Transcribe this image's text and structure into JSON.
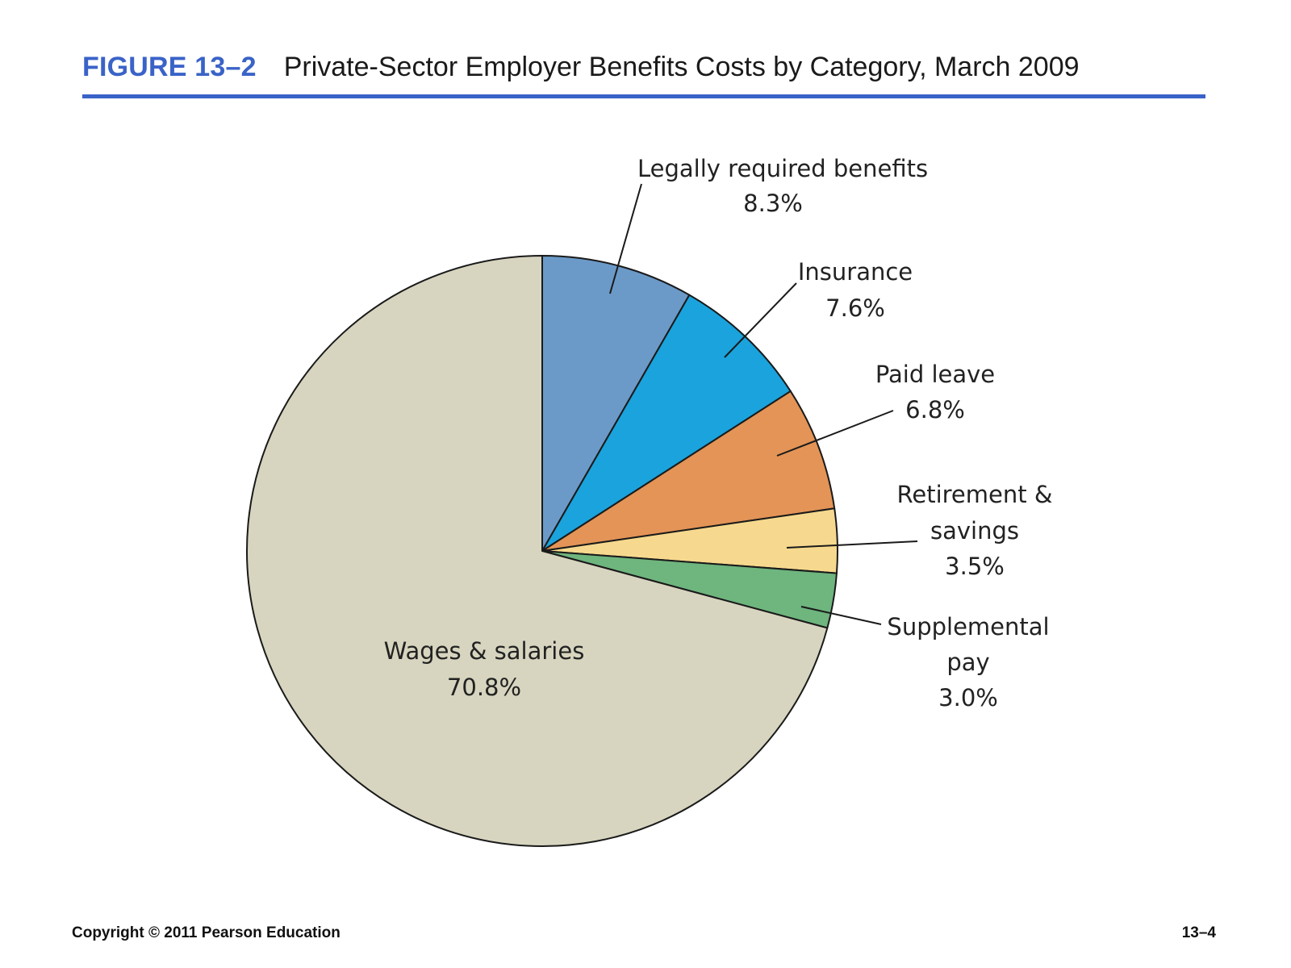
{
  "header": {
    "figure_number": "FIGURE 13–2",
    "title": "Private-Sector Employer Benefits Costs by Category, March 2009"
  },
  "chart_data": {
    "type": "pie",
    "title": "Private-Sector Employer Benefits Costs by Category, March 2009",
    "slices": [
      {
        "label": "Legally required benefits",
        "value": 8.3,
        "value_label": "8.3%",
        "color": "#6b9ac8"
      },
      {
        "label": "Insurance",
        "value": 7.6,
        "value_label": "7.6%",
        "color": "#1aa3dc"
      },
      {
        "label": "Paid leave",
        "value": 6.8,
        "value_label": "6.8%",
        "color": "#e39456"
      },
      {
        "label": "Retirement & savings",
        "value": 3.5,
        "value_label": "3.5%",
        "color": "#f6d98e"
      },
      {
        "label": "Supplemental pay",
        "value": 3.0,
        "value_label": "3.0%",
        "color": "#6eb57e"
      },
      {
        "label": "Wages & salaries",
        "value": 70.8,
        "value_label": "70.8%",
        "color": "#d7d5bf"
      }
    ],
    "start_angle": "12 o'clock, clockwise"
  },
  "footer": {
    "copyright": "Copyright © 2011 Pearson Education",
    "page": "13–4"
  }
}
